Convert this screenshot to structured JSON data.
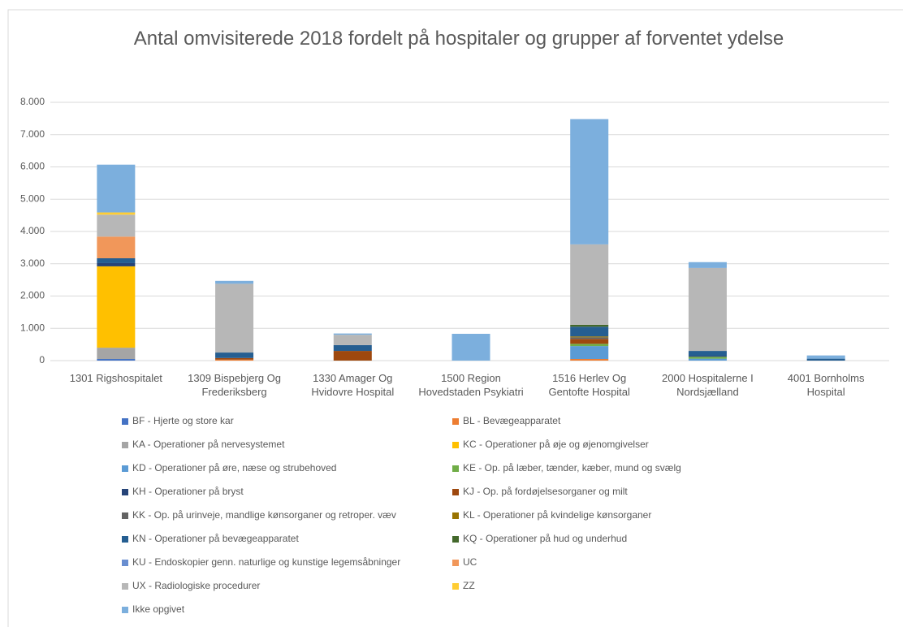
{
  "chart_data": {
    "type": "stacked_bar",
    "title": "Antal omvisiterede 2018 fordelt på hospitaler og grupper af forventet ydelse",
    "categories": [
      "1301 Rigshospitalet",
      "1309 Bispebjerg Og Frederiksberg",
      "1330 Amager Og Hvidovre Hospital",
      "1500 Region Hovedstaden Psykiatri",
      "1516 Herlev Og Gentofte Hospital",
      "2000 Hospitalerne I Nordsjælland",
      "4001 Bornholms Hospital"
    ],
    "ylim": [
      0,
      8000
    ],
    "yticks": [
      0,
      {
        "value": 1000,
        "label": "1.000"
      },
      {
        "value": 2000,
        "label": "2.000"
      },
      {
        "value": 3000,
        "label": "3.000"
      },
      {
        "value": 4000,
        "label": "4.000"
      },
      {
        "value": 5000,
        "label": "5.000"
      },
      {
        "value": 6000,
        "label": "6.000"
      },
      {
        "value": 7000,
        "label": "7.000"
      },
      {
        "value": 8000,
        "label": "8.000"
      }
    ],
    "grid": true,
    "legend": "bottom",
    "series": [
      {
        "name": "BF - Hjerte og store kar",
        "color": "#4472c4",
        "values": [
          50,
          0,
          0,
          0,
          0,
          0,
          0
        ]
      },
      {
        "name": "BL - Bevægeapparatet",
        "color": "#ed7d31",
        "values": [
          0,
          30,
          0,
          0,
          50,
          0,
          0
        ]
      },
      {
        "name": "KA - Operationer på nervesystemet",
        "color": "#a5a5a5",
        "values": [
          350,
          0,
          0,
          0,
          0,
          0,
          0
        ]
      },
      {
        "name": "KC - Operationer på øje og øjenomgivelser",
        "color": "#ffc000",
        "values": [
          2520,
          0,
          0,
          0,
          0,
          0,
          0
        ]
      },
      {
        "name": "KD - Operationer på øre, næse og strubehoved",
        "color": "#5b9bd5",
        "values": [
          0,
          0,
          0,
          0,
          400,
          60,
          0
        ]
      },
      {
        "name": "KE - Op. på læber, tænder, kæber, mund og svælg",
        "color": "#70ad47",
        "values": [
          0,
          0,
          0,
          0,
          70,
          60,
          0
        ]
      },
      {
        "name": "KH - Operationer på bryst",
        "color": "#264478",
        "values": [
          100,
          0,
          0,
          0,
          0,
          30,
          0
        ]
      },
      {
        "name": "KJ - Op. på fordøjelsesorganer og milt",
        "color": "#9e480e",
        "values": [
          0,
          50,
          300,
          0,
          150,
          0,
          0
        ]
      },
      {
        "name": "KK - Op. på urinveje, mandlige kønsorganer og retroper. væv",
        "color": "#636363",
        "values": [
          0,
          0,
          0,
          0,
          50,
          0,
          0
        ]
      },
      {
        "name": "KL - Operationer på kvindelige kønsorganer",
        "color": "#997300",
        "values": [
          0,
          0,
          0,
          0,
          30,
          0,
          0
        ]
      },
      {
        "name": "KN - Operationer på bevægeapparatet",
        "color": "#255e91",
        "values": [
          150,
          170,
          180,
          0,
          300,
          150,
          60
        ]
      },
      {
        "name": "KQ - Operationer på hud og underhud",
        "color": "#43682b",
        "values": [
          0,
          0,
          0,
          0,
          60,
          0,
          0
        ]
      },
      {
        "name": "KU - Endoskopier genn. naturlige og kunstige legemsåbninger",
        "color": "#698ed0",
        "values": [
          0,
          0,
          0,
          0,
          0,
          0,
          0
        ]
      },
      {
        "name": "UC",
        "color": "#f1975a",
        "values": [
          670,
          0,
          0,
          0,
          0,
          0,
          0
        ]
      },
      {
        "name": "UX - Radiologiske procedurer",
        "color": "#b7b7b7",
        "values": [
          680,
          2130,
          320,
          0,
          2490,
          2570,
          0
        ]
      },
      {
        "name": "ZZ",
        "color": "#ffcd33",
        "values": [
          70,
          0,
          0,
          0,
          0,
          0,
          0
        ]
      },
      {
        "name": "Ikke opgivet",
        "color": "#7cafdd",
        "values": [
          1480,
          90,
          40,
          830,
          3880,
          180,
          100
        ]
      }
    ]
  }
}
